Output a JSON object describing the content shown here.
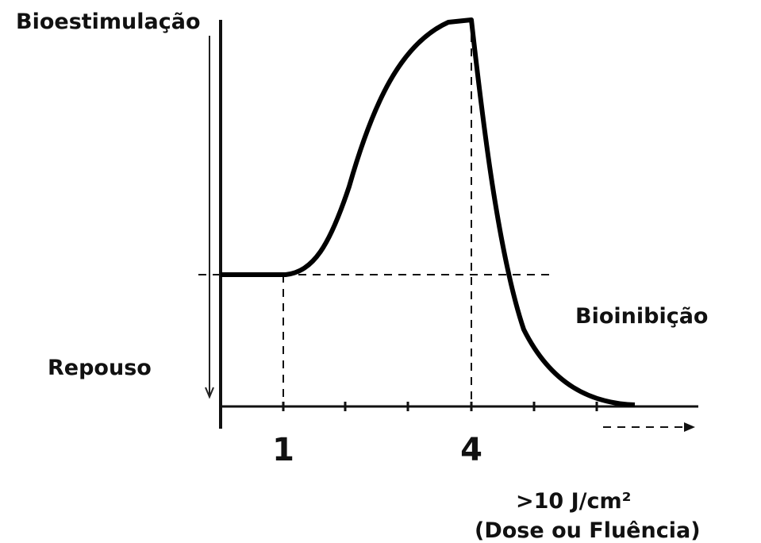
{
  "labels": {
    "top": "Bioestimulação",
    "left": "Repouso",
    "right": "Bioinibição",
    "unit": ">10 J/cm²",
    "axis_title": "(Dose ou Fluência)"
  },
  "ticks": [
    "1",
    "4"
  ]
}
